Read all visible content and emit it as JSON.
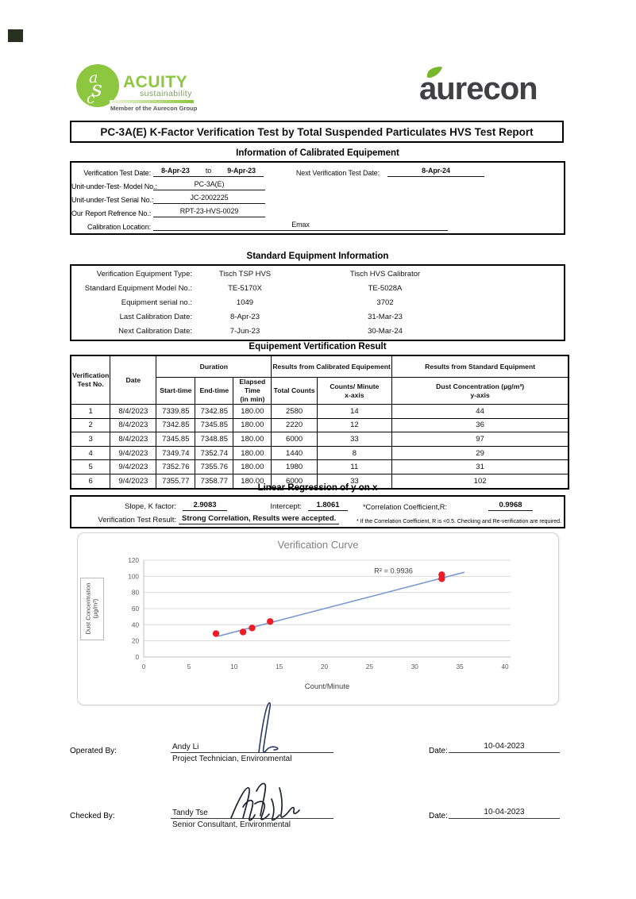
{
  "header": {
    "acuity": {
      "monogram": "asc",
      "name": "ACUITY",
      "tagline": "sustainability",
      "member": "Member of the Aurecon Group",
      "green": "#8dc63f"
    },
    "aurecon": {
      "wordmark": "aurecon",
      "charcoal": "#414042",
      "leaf_green": "#76b82a"
    }
  },
  "title": "PC-3A(E)  K-Factor Verification Test by Total Suspended Particulates HVS Test Report",
  "calibrated": {
    "heading": "Information of Calibrated Equipement",
    "test_date_label": "Verification Test Date:",
    "date_from": "8-Apr-23",
    "to_word": "to",
    "date_to": "9-Apr-23",
    "next_label": "Next Verification Test Date:",
    "next_date": "8-Apr-24",
    "rows": [
      {
        "label": "Unit-under-Test- Model No.:",
        "value": "PC-3A(E)"
      },
      {
        "label": "Unit-under-Test Serial No.:",
        "value": "JC-2002225"
      },
      {
        "label": "Our Report Refrence No.:",
        "value": "RPT-23-HVS-0029"
      }
    ],
    "location_label": "Calibration Location:",
    "location_value": "Emax"
  },
  "standard": {
    "heading": "Standard Equipment Information",
    "rows": [
      {
        "label": "Verification Equipment Type:",
        "hvs": "Tisch TSP HVS",
        "calibrator": "Tisch HVS Calibrator"
      },
      {
        "label": "Standard Equipment Model No.:",
        "hvs": "TE-5170X",
        "calibrator": "TE-5028A"
      },
      {
        "label": "Equipment serial no.:",
        "hvs": "1049",
        "calibrator": "3702"
      },
      {
        "label": "Last Calibration Date:",
        "hvs": "8-Apr-23",
        "calibrator": "31-Mar-23"
      },
      {
        "label": "Next Calibration Date:",
        "hvs": "7-Jun-23",
        "calibrator": "30-Mar-24"
      }
    ]
  },
  "result_table": {
    "heading": "Equipement Vertification Result",
    "h_test_no": "Verification Test No.",
    "h_date": "Date",
    "h_duration": "Duration",
    "h_calibrated": "Results from Calibrated Equipement",
    "h_standard": "Results from Standard Equipment",
    "h_start": "Start-time",
    "h_end": "End-time",
    "h_elapsed_1": "Elapsed Time",
    "h_elapsed_2": "(in min)",
    "h_total": "Total Counts",
    "h_cpm_1": "Counts/ Minute",
    "h_cpm_2": "x-axis",
    "h_dust_1": "Dust Concentration (µg/m³)",
    "h_dust_2": "y-axis",
    "rows": [
      [
        "1",
        "8/4/2023",
        "7339.85",
        "7342.85",
        "180.00",
        "2580",
        "14",
        "44"
      ],
      [
        "2",
        "8/4/2023",
        "7342.85",
        "7345.85",
        "180.00",
        "2220",
        "12",
        "36"
      ],
      [
        "3",
        "8/4/2023",
        "7345.85",
        "7348.85",
        "180.00",
        "6000",
        "33",
        "97"
      ],
      [
        "4",
        "9/4/2023",
        "7349.74",
        "7352.74",
        "180.00",
        "1440",
        "8",
        "29"
      ],
      [
        "5",
        "9/4/2023",
        "7352.76",
        "7355.76",
        "180.00",
        "1980",
        "11",
        "31"
      ],
      [
        "6",
        "9/4/2023",
        "7355.77",
        "7358.77",
        "180.00",
        "6000",
        "33",
        "102"
      ]
    ]
  },
  "regression": {
    "heading": "Linear Regression of y on x",
    "slope_label": "Slope, K factor:",
    "slope": "2.9083",
    "intercept_label": "Intercept:",
    "intercept": "1.8061",
    "corr_label": "*Correlation Coefficient,R:",
    "corr": "0.9968",
    "result_label": "Verification Test Result:",
    "result": "Strong Correlation, Results were accepted.",
    "footnote": "* If the Correlation Coefficient, R is <0.5. Checking and Re-verification are required."
  },
  "chart_data": {
    "type": "scatter",
    "title": "Verification Curve",
    "xlabel": "Count/Minute",
    "ylabel_line1": "Dust Concentration",
    "ylabel_line2": "(µg/m³)",
    "xlim": [
      0,
      40
    ],
    "ylim": [
      0,
      120
    ],
    "xticks": [
      0,
      5,
      10,
      15,
      20,
      25,
      30,
      35,
      40
    ],
    "yticks": [
      0,
      20,
      40,
      60,
      80,
      100,
      120
    ],
    "grid": "horizontal",
    "points": [
      {
        "x": 14,
        "y": 44
      },
      {
        "x": 12,
        "y": 36
      },
      {
        "x": 33,
        "y": 97
      },
      {
        "x": 8,
        "y": 29
      },
      {
        "x": 11,
        "y": 31
      },
      {
        "x": 33,
        "y": 102
      }
    ],
    "trendline": {
      "x_start": 8.2,
      "x_end": 35.5,
      "slope": 2.9083,
      "intercept": 1.8061
    },
    "r_squared_label": "R² = 0.9936",
    "annotation": {
      "x": 29.8,
      "y": 104
    },
    "colors": {
      "point": "#ee1c24",
      "line": "#7c9ad1",
      "grid": "#d9d9d9",
      "axis": "#bfbfbf"
    }
  },
  "signatures": {
    "operated": {
      "label": "Operated By:",
      "name": "Andy Li",
      "title": "Project Technician, Environmental",
      "date_label": "Date:",
      "date": "10-04-2023"
    },
    "checked": {
      "label": "Checked By:",
      "name": "Tandy Tse",
      "title": "Senior Consultant, Environmental",
      "date_label": "Date:",
      "date": "10-04-2023"
    }
  }
}
